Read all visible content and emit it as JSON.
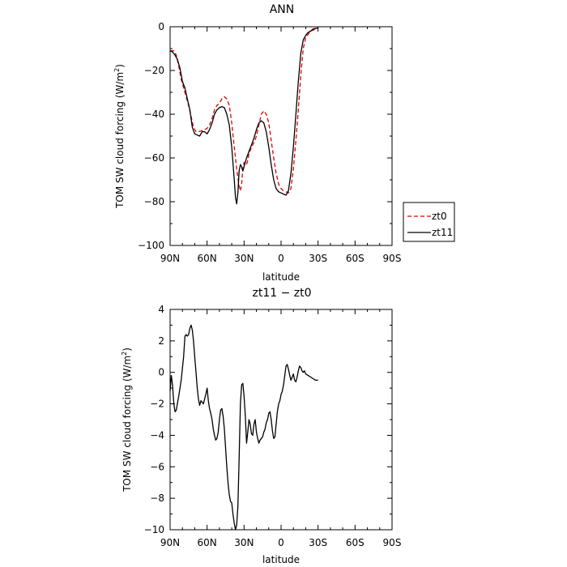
{
  "chart_data": [
    {
      "type": "line",
      "title": "ANN",
      "xlabel": "latitude",
      "ylabel": "TOM SW cloud forcing (W/m²)",
      "ylabel_main": "TOM SW cloud forcing (W/m",
      "ylabel_sup": "2",
      "ylabel_end": ")",
      "xlim": [
        90,
        -90
      ],
      "ylim": [
        -100,
        0
      ],
      "x_ticks": [
        90,
        60,
        30,
        0,
        -30,
        -60,
        -90
      ],
      "x_tick_labels": [
        "90N",
        "60N",
        "30N",
        "0",
        "30S",
        "60S",
        "90S"
      ],
      "y_ticks": [
        0,
        -20,
        -40,
        -60,
        -80,
        -100
      ],
      "y_tick_labels": [
        "0",
        "−20",
        "−40",
        "−60",
        "−80",
        "−100"
      ],
      "legend": "right",
      "series": [
        {
          "name": "zt0",
          "color": "#e00000",
          "dash": "dashed",
          "points": [
            [
              90,
              -11
            ],
            [
              87,
              -11
            ],
            [
              85,
              -13
            ],
            [
              83,
              -18
            ],
            [
              81,
              -24
            ],
            [
              79,
              -28
            ],
            [
              77,
              -32
            ],
            [
              75,
              -36
            ],
            [
              73,
              -41
            ],
            [
              71,
              -46
            ],
            [
              69,
              -48
            ],
            [
              67,
              -48
            ],
            [
              64,
              -47.5
            ],
            [
              62,
              -47
            ],
            [
              60,
              -46.5
            ],
            [
              58,
              -45
            ],
            [
              56,
              -42
            ],
            [
              54,
              -38
            ],
            [
              52,
              -36
            ],
            [
              50,
              -35
            ],
            [
              48,
              -33
            ],
            [
              46,
              -32
            ],
            [
              44,
              -33
            ],
            [
              42,
              -36
            ],
            [
              40,
              -44
            ],
            [
              38,
              -55
            ],
            [
              36,
              -65
            ],
            [
              34,
              -73
            ],
            [
              33,
              -75
            ],
            [
              32,
              -72
            ],
            [
              31,
              -65
            ],
            [
              30,
              -62
            ],
            [
              29,
              -63
            ],
            [
              28,
              -63
            ],
            [
              27,
              -61
            ],
            [
              26,
              -58
            ],
            [
              24,
              -55
            ],
            [
              22,
              -53
            ],
            [
              20,
              -50
            ],
            [
              18,
              -45
            ],
            [
              16,
              -40
            ],
            [
              14,
              -38.5
            ],
            [
              12,
              -40
            ],
            [
              10,
              -44
            ],
            [
              8,
              -52
            ],
            [
              6,
              -60
            ],
            [
              4,
              -67
            ],
            [
              2,
              -72
            ],
            [
              0,
              -74
            ],
            [
              -2,
              -75
            ],
            [
              -4,
              -75.5
            ],
            [
              -6,
              -76
            ],
            [
              -8,
              -74
            ],
            [
              -10,
              -65
            ],
            [
              -12,
              -52
            ],
            [
              -14,
              -38
            ],
            [
              -16,
              -22
            ],
            [
              -18,
              -10
            ],
            [
              -20,
              -5
            ],
            [
              -22,
              -3.5
            ],
            [
              -24,
              -2
            ],
            [
              -26,
              -1.5
            ],
            [
              -28,
              -1
            ],
            [
              -30,
              -0.5
            ]
          ]
        },
        {
          "name": "zt11",
          "color": "#000000",
          "dash": "solid",
          "points": [
            [
              90,
              -11
            ],
            [
              88,
              -11.5
            ],
            [
              86,
              -13
            ],
            [
              84,
              -15
            ],
            [
              82,
              -19
            ],
            [
              80,
              -25
            ],
            [
              78,
              -28
            ],
            [
              76,
              -33
            ],
            [
              74,
              -38
            ],
            [
              72,
              -46
            ],
            [
              70,
              -49
            ],
            [
              68,
              -49.5
            ],
            [
              66,
              -50
            ],
            [
              64,
              -48
            ],
            [
              62,
              -48
            ],
            [
              60,
              -49
            ],
            [
              58,
              -47
            ],
            [
              56,
              -44
            ],
            [
              54,
              -40
            ],
            [
              52,
              -38
            ],
            [
              50,
              -37
            ],
            [
              48,
              -36.5
            ],
            [
              46,
              -37
            ],
            [
              44,
              -40
            ],
            [
              42,
              -45
            ],
            [
              40,
              -55
            ],
            [
              38,
              -70
            ],
            [
              37,
              -78
            ],
            [
              36,
              -81
            ],
            [
              35,
              -76
            ],
            [
              34,
              -66
            ],
            [
              33,
              -63
            ],
            [
              32,
              -64
            ],
            [
              31,
              -66
            ],
            [
              30,
              -64
            ],
            [
              28,
              -60
            ],
            [
              26,
              -57
            ],
            [
              24,
              -54
            ],
            [
              22,
              -51
            ],
            [
              20,
              -47
            ],
            [
              18,
              -44
            ],
            [
              16,
              -43
            ],
            [
              14,
              -44
            ],
            [
              12,
              -48
            ],
            [
              10,
              -55
            ],
            [
              8,
              -63
            ],
            [
              6,
              -70
            ],
            [
              4,
              -74
            ],
            [
              2,
              -75.5
            ],
            [
              0,
              -76
            ],
            [
              -2,
              -76.5
            ],
            [
              -4,
              -77
            ],
            [
              -6,
              -75
            ],
            [
              -8,
              -67
            ],
            [
              -10,
              -55
            ],
            [
              -12,
              -40
            ],
            [
              -14,
              -25
            ],
            [
              -16,
              -12
            ],
            [
              -18,
              -6
            ],
            [
              -20,
              -4
            ],
            [
              -22,
              -2.5
            ],
            [
              -24,
              -2
            ],
            [
              -26,
              -1
            ],
            [
              -28,
              -0.8
            ],
            [
              -30,
              -0.5
            ]
          ]
        }
      ]
    },
    {
      "type": "line",
      "title": "zt11 − zt0",
      "xlabel": "latitude",
      "ylabel": "TOM SW cloud forcing (W/m²)",
      "ylabel_main": "TOM SW cloud forcing (W/m",
      "ylabel_sup": "2",
      "ylabel_end": ")",
      "xlim": [
        90,
        -90
      ],
      "ylim": [
        -10,
        4
      ],
      "x_ticks": [
        90,
        60,
        30,
        0,
        -30,
        -60,
        -90
      ],
      "x_tick_labels": [
        "90N",
        "60N",
        "30N",
        "0",
        "30S",
        "60S",
        "90S"
      ],
      "y_ticks": [
        4,
        2,
        0,
        -2,
        -4,
        -6,
        -8,
        -10
      ],
      "y_tick_labels": [
        "4",
        "2",
        "0",
        "−2",
        "−4",
        "−6",
        "−8",
        "−10"
      ],
      "series": [
        {
          "color": "#000000",
          "dash": "solid",
          "points": [
            [
              90,
              -1.2
            ],
            [
              89,
              -0.2
            ],
            [
              88,
              -0.8
            ],
            [
              87,
              -2
            ],
            [
              86,
              -2.5
            ],
            [
              85,
              -2.4
            ],
            [
              83,
              -1.5
            ],
            [
              81,
              -0.5
            ],
            [
              79,
              1
            ],
            [
              78,
              2.3
            ],
            [
              77,
              2.4
            ],
            [
              76,
              2.3
            ],
            [
              75,
              2.4
            ],
            [
              74,
              2.8
            ],
            [
              73,
              3
            ],
            [
              72,
              2.7
            ],
            [
              71,
              2
            ],
            [
              70,
              1
            ],
            [
              69,
              0
            ],
            [
              68,
              -1
            ],
            [
              67,
              -1.7
            ],
            [
              66,
              -2.1
            ],
            [
              65,
              -1.8
            ],
            [
              64,
              -1.9
            ],
            [
              63,
              -2
            ],
            [
              62,
              -1.7
            ],
            [
              61,
              -1.4
            ],
            [
              60,
              -1
            ],
            [
              59,
              -1.8
            ],
            [
              58,
              -2.3
            ],
            [
              57,
              -2.6
            ],
            [
              56,
              -3
            ],
            [
              55,
              -3.6
            ],
            [
              54,
              -4
            ],
            [
              53,
              -4.3
            ],
            [
              52,
              -4.2
            ],
            [
              51,
              -3.8
            ],
            [
              50,
              -3
            ],
            [
              49,
              -2.4
            ],
            [
              48,
              -2.3
            ],
            [
              47,
              -2.8
            ],
            [
              46,
              -3.6
            ],
            [
              45,
              -4.8
            ],
            [
              44,
              -6
            ],
            [
              43,
              -7
            ],
            [
              42,
              -7.8
            ],
            [
              41,
              -8.2
            ],
            [
              40,
              -8.3
            ],
            [
              39,
              -9
            ],
            [
              38,
              -9.6
            ],
            [
              37,
              -10
            ],
            [
              36,
              -9.7
            ],
            [
              35,
              -8.5
            ],
            [
              34,
              -5.5
            ],
            [
              33,
              -2
            ],
            [
              32,
              -0.8
            ],
            [
              31,
              -0.7
            ],
            [
              30,
              -1.5
            ],
            [
              29,
              -2.8
            ],
            [
              28,
              -4.5
            ],
            [
              27,
              -3.8
            ],
            [
              26,
              -3
            ],
            [
              25,
              -3.3
            ],
            [
              24,
              -3.9
            ],
            [
              23,
              -4
            ],
            [
              22,
              -3.3
            ],
            [
              21,
              -3
            ],
            [
              20,
              -3.8
            ],
            [
              19,
              -4.2
            ],
            [
              18,
              -4.5
            ],
            [
              17,
              -4.3
            ],
            [
              16,
              -4.2
            ],
            [
              15,
              -4.1
            ],
            [
              14,
              -3.8
            ],
            [
              13,
              -3.6
            ],
            [
              12,
              -3.2
            ],
            [
              11,
              -3
            ],
            [
              10,
              -2.6
            ],
            [
              9,
              -2.5
            ],
            [
              8,
              -3
            ],
            [
              7,
              -3.7
            ],
            [
              6,
              -4.2
            ],
            [
              5,
              -4.1
            ],
            [
              4,
              -3.3
            ],
            [
              3,
              -2.5
            ],
            [
              2,
              -2
            ],
            [
              1,
              -1.8
            ],
            [
              0,
              -1.4
            ],
            [
              -1,
              -1.2
            ],
            [
              -2,
              -0.8
            ],
            [
              -3,
              -0.2
            ],
            [
              -4,
              0.4
            ],
            [
              -5,
              0.5
            ],
            [
              -6,
              0.2
            ],
            [
              -7,
              -0.2
            ],
            [
              -8,
              -0.5
            ],
            [
              -9,
              -0.3
            ],
            [
              -10,
              -0.1
            ],
            [
              -11,
              -0.5
            ],
            [
              -12,
              -0.6
            ],
            [
              -13,
              -0.3
            ],
            [
              -14,
              0.1
            ],
            [
              -15,
              0.4
            ],
            [
              -16,
              0.3
            ],
            [
              -17,
              0.1
            ],
            [
              -18,
              0
            ],
            [
              -19,
              0.1
            ],
            [
              -20,
              -0.1
            ],
            [
              -22,
              -0.2
            ],
            [
              -24,
              -0.3
            ],
            [
              -26,
              -0.4
            ],
            [
              -28,
              -0.5
            ],
            [
              -30,
              -0.5
            ]
          ]
        }
      ]
    }
  ]
}
